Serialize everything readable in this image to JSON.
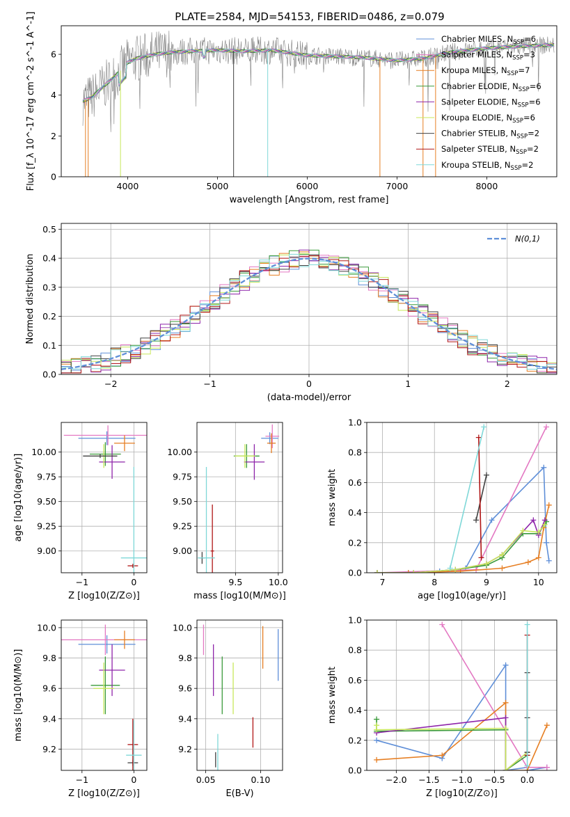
{
  "figure_title": "PLATE=2584, MJD=54153, FIBERID=0486, z=0.079",
  "models": [
    {
      "name": "Chabrier MILES, N",
      "sub": "SSP",
      "tail": "=6",
      "color": "#5f8fd8"
    },
    {
      "name": "Salpeter MILES, N",
      "sub": "SSP",
      "tail": "=3",
      "color": "#e377c2"
    },
    {
      "name": "Kroupa MILES, N",
      "sub": "SSP",
      "tail": "=7",
      "color": "#e67e22"
    },
    {
      "name": "Chabrier ELODIE, N",
      "sub": "SSP",
      "tail": "=6",
      "color": "#3a9a3a"
    },
    {
      "name": "Salpeter ELODIE, N",
      "sub": "SSP",
      "tail": "=6",
      "color": "#8e24aa"
    },
    {
      "name": "Kroupa ELODIE, N",
      "sub": "SSP",
      "tail": "=6",
      "color": "#c8e85a"
    },
    {
      "name": "Chabrier STELIB, N",
      "sub": "SSP",
      "tail": "=2",
      "color": "#404040"
    },
    {
      "name": "Salpeter STELIB, N",
      "sub": "SSP",
      "tail": "=2",
      "color": "#b01515"
    },
    {
      "name": "Kroupa STELIB, N",
      "sub": "SSP",
      "tail": "=2",
      "color": "#7fd8d8"
    }
  ],
  "chart_data": [
    {
      "id": "spectrum",
      "type": "line",
      "xlabel": "wavelength [Angstrom, rest frame]",
      "ylabel": "Flux [f_λ 10^-17 erg cm^-2 s^-1 A^-1]",
      "xlim": [
        3260,
        8780
      ],
      "ylim": [
        0,
        7.4
      ],
      "xticks": [
        4000,
        5000,
        6000,
        7000,
        8000
      ],
      "yticks": [
        0,
        2,
        4,
        6
      ],
      "grid": false,
      "legend": "top-right",
      "data_continuum": {
        "x": [
          3500,
          3600,
          3700,
          3800,
          3900,
          4000,
          4100,
          4200,
          4300,
          4500,
          4700,
          5000,
          5300,
          5600,
          6000,
          6300,
          6600,
          7000,
          7300,
          7600,
          8000,
          8400,
          8700
        ],
        "y": [
          3.7,
          3.9,
          4.3,
          4.7,
          5.1,
          5.6,
          5.8,
          5.9,
          6.0,
          6.1,
          6.15,
          6.2,
          6.15,
          6.2,
          5.95,
          5.9,
          5.85,
          5.7,
          5.8,
          6.1,
          6.3,
          6.4,
          6.45
        ]
      }
    },
    {
      "id": "residuals",
      "type": "histogram",
      "xlabel": "(data-model)/error",
      "ylabel": "Normed distribution",
      "xlim": [
        -2.5,
        2.5
      ],
      "ylim": [
        0,
        0.52
      ],
      "xticks": [
        -2,
        -1,
        0,
        1,
        2
      ],
      "yticks": [
        0.0,
        0.1,
        0.2,
        0.3,
        0.4,
        0.5
      ],
      "grid": true,
      "legend": "top-right",
      "normal_label": "N(0,1)",
      "normal_color": "#5f8fd8",
      "bin_width": 0.1
    },
    {
      "id": "age_vs_Z",
      "type": "errorbar",
      "xlabel": "Z [log10(Z/Z⊙)]",
      "ylabel": "age [log10(age/yr)]",
      "xlim": [
        -1.4,
        0.25
      ],
      "ylim": [
        8.78,
        10.3
      ],
      "xticks": [
        -1,
        0
      ],
      "yticks": [
        9.0,
        9.25,
        9.5,
        9.75,
        10.0
      ],
      "grid": true,
      "points": [
        {
          "model": 0,
          "x": -0.52,
          "xe": 0.55,
          "y": 10.14,
          "ye": 0.07
        },
        {
          "model": 1,
          "x": -0.5,
          "xe": 0.85,
          "y": 10.17,
          "ye": 0.1
        },
        {
          "model": 2,
          "x": -0.18,
          "xe": 0.2,
          "y": 10.09,
          "ye": 0.08
        },
        {
          "model": 3,
          "x": -0.55,
          "xe": 0.3,
          "y": 9.98,
          "ye": 0.12
        },
        {
          "model": 4,
          "x": -0.42,
          "xe": 0.25,
          "y": 9.9,
          "ye": 0.17
        },
        {
          "model": 5,
          "x": -0.58,
          "xe": 0.2,
          "y": 9.96,
          "ye": 0.12
        },
        {
          "model": 6,
          "x": -0.65,
          "xe": 0.33,
          "y": 9.96,
          "ye": 0.02
        },
        {
          "model": 7,
          "x": -0.02,
          "xe": 0.1,
          "y": 8.85,
          "ye": 0.02
        },
        {
          "model": 8,
          "x": 0.0,
          "xe": 0.25,
          "y": 8.93,
          "ye": 0.92
        }
      ]
    },
    {
      "id": "age_vs_mass",
      "type": "errorbar",
      "xlabel": "mass [log10(M/M⊙)]",
      "ylabel": "",
      "xlim": [
        9.05,
        10.05
      ],
      "ylim": [
        8.78,
        10.3
      ],
      "xticks": [
        9.5,
        10.0
      ],
      "yticks": [
        9.0,
        9.25,
        9.5,
        9.75,
        10.0
      ],
      "grid": true,
      "points": [
        {
          "model": 0,
          "x": 9.9,
          "xe": 0.1,
          "y": 10.14,
          "ye": 0.06
        },
        {
          "model": 1,
          "x": 9.93,
          "xe": 0.08,
          "y": 10.16,
          "ye": 0.12
        },
        {
          "model": 2,
          "x": 9.92,
          "xe": 0.05,
          "y": 10.09,
          "ye": 0.1
        },
        {
          "model": 3,
          "x": 9.63,
          "xe": 0.15,
          "y": 9.96,
          "ye": 0.12
        },
        {
          "model": 4,
          "x": 9.72,
          "xe": 0.12,
          "y": 9.9,
          "ye": 0.18
        },
        {
          "model": 5,
          "x": 9.61,
          "xe": 0.12,
          "y": 9.96,
          "ye": 0.12
        },
        {
          "model": 6,
          "x": 9.11,
          "xe": 0.03,
          "y": 8.93,
          "ye": 0.06
        },
        {
          "model": 7,
          "x": 9.23,
          "xe": 0.02,
          "y": 9.0,
          "ye": 0.47
        },
        {
          "model": 8,
          "x": 9.16,
          "xe": 0.1,
          "y": 8.93,
          "ye": 0.92
        }
      ]
    },
    {
      "id": "weight_vs_age",
      "type": "line",
      "xlabel": "age [log10(age/yr)]",
      "ylabel": "mass weight",
      "xlim": [
        6.7,
        10.35
      ],
      "ylim": [
        0,
        1.0
      ],
      "xticks": [
        7,
        8,
        9,
        10
      ],
      "yticks": [
        0.0,
        0.2,
        0.4,
        0.6,
        0.8,
        1.0
      ],
      "grid": true,
      "series": [
        {
          "model": 0,
          "x": [
            6.9,
            7.5,
            8.1,
            8.6,
            9.1,
            10.1,
            10.15,
            10.2
          ],
          "y": [
            0.0,
            0.0,
            0.01,
            0.03,
            0.35,
            0.7,
            0.2,
            0.08
          ]
        },
        {
          "model": 1,
          "x": [
            6.9,
            8.8,
            10.15
          ],
          "y": [
            0.0,
            0.02,
            0.97
          ]
        },
        {
          "model": 2,
          "x": [
            6.9,
            7.5,
            8.5,
            9.3,
            9.8,
            10.0,
            10.1,
            10.2
          ],
          "y": [
            0.0,
            0.0,
            0.01,
            0.03,
            0.07,
            0.1,
            0.3,
            0.45
          ]
        },
        {
          "model": 3,
          "x": [
            6.9,
            7.6,
            8.4,
            9.0,
            9.3,
            9.7,
            10.0,
            10.15
          ],
          "y": [
            0.0,
            0.0,
            0.02,
            0.05,
            0.1,
            0.26,
            0.26,
            0.34
          ]
        },
        {
          "model": 4,
          "x": [
            6.9,
            7.6,
            8.4,
            9.0,
            9.3,
            9.9,
            10.0,
            10.12
          ],
          "y": [
            0.0,
            0.0,
            0.02,
            0.06,
            0.12,
            0.35,
            0.25,
            0.35
          ]
        },
        {
          "model": 5,
          "x": [
            6.9,
            7.6,
            8.4,
            9.0,
            9.3,
            9.7,
            10.0,
            10.12
          ],
          "y": [
            0.0,
            0.0,
            0.02,
            0.06,
            0.12,
            0.28,
            0.27,
            0.32
          ]
        },
        {
          "model": 6,
          "x": [
            8.8,
            9.0
          ],
          "y": [
            0.35,
            0.65
          ]
        },
        {
          "model": 7,
          "x": [
            8.85,
            8.9
          ],
          "y": [
            0.9,
            0.1
          ]
        },
        {
          "model": 8,
          "x": [
            8.3,
            8.95
          ],
          "y": [
            0.03,
            0.97
          ]
        }
      ]
    },
    {
      "id": "mass_vs_Z",
      "type": "errorbar",
      "xlabel": "Z [log10(Z/Z⊙)]",
      "ylabel": "mass [log10(M/M⊙)]",
      "xlim": [
        -1.4,
        0.25
      ],
      "ylim": [
        9.06,
        10.05
      ],
      "xticks": [
        -1,
        0
      ],
      "yticks": [
        9.2,
        9.4,
        9.6,
        9.8,
        10.0
      ],
      "grid": true,
      "points": [
        {
          "model": 0,
          "x": -0.52,
          "xe": 0.55,
          "y": 9.89,
          "ye": 0.06
        },
        {
          "model": 1,
          "x": -0.55,
          "xe": 0.85,
          "y": 9.92,
          "ye": 0.1
        },
        {
          "model": 2,
          "x": -0.18,
          "xe": 0.2,
          "y": 9.92,
          "ye": 0.06
        },
        {
          "model": 3,
          "x": -0.55,
          "xe": 0.28,
          "y": 9.62,
          "ye": 0.19
        },
        {
          "model": 4,
          "x": -0.42,
          "xe": 0.25,
          "y": 9.72,
          "ye": 0.17
        },
        {
          "model": 5,
          "x": -0.58,
          "xe": 0.2,
          "y": 9.6,
          "ye": 0.17
        },
        {
          "model": 6,
          "x": -0.02,
          "xe": 0.1,
          "y": 9.11,
          "ye": 0.02
        },
        {
          "model": 7,
          "x": -0.02,
          "xe": 0.1,
          "y": 9.23,
          "ye": 0.17
        },
        {
          "model": 8,
          "x": 0.0,
          "xe": 0.15,
          "y": 9.16,
          "ye": 0.23
        }
      ]
    },
    {
      "id": "mass_vs_ebv",
      "type": "errorbar",
      "xlabel": "E(B-V)",
      "ylabel": "",
      "xlim": [
        0.042,
        0.12
      ],
      "ylim": [
        9.06,
        10.05
      ],
      "xticks": [
        0.05,
        0.1
      ],
      "yticks": [
        9.2,
        9.4,
        9.6,
        9.8,
        10.0
      ],
      "grid": true,
      "points": [
        {
          "model": 0,
          "x": 0.116,
          "xe": 0.0,
          "y": 9.82,
          "ye": 0.17
        },
        {
          "model": 1,
          "x": 0.048,
          "xe": 0.0,
          "y": 9.92,
          "ye": 0.1
        },
        {
          "model": 2,
          "x": 0.102,
          "xe": 0.0,
          "y": 9.87,
          "ye": 0.14
        },
        {
          "model": 3,
          "x": 0.065,
          "xe": 0.0,
          "y": 9.62,
          "ye": 0.19
        },
        {
          "model": 4,
          "x": 0.057,
          "xe": 0.0,
          "y": 9.72,
          "ye": 0.17
        },
        {
          "model": 5,
          "x": 0.075,
          "xe": 0.0,
          "y": 9.6,
          "ye": 0.17
        },
        {
          "model": 6,
          "x": 0.059,
          "xe": 0.0,
          "y": 9.13,
          "ye": 0.05
        },
        {
          "model": 7,
          "x": 0.093,
          "xe": 0.0,
          "y": 9.31,
          "ye": 0.1
        },
        {
          "model": 8,
          "x": 0.061,
          "xe": 0.0,
          "y": 9.17,
          "ye": 0.13
        }
      ]
    },
    {
      "id": "weight_vs_Z",
      "type": "line",
      "xlabel": "Z [log10(Z/Z⊙)]",
      "ylabel": "mass weight",
      "xlim": [
        -2.45,
        0.45
      ],
      "ylim": [
        0,
        1.0
      ],
      "xticks": [
        -2.0,
        -1.5,
        -1.0,
        -0.5,
        0.0
      ],
      "yticks": [
        0.0,
        0.2,
        0.4,
        0.6,
        0.8,
        1.0
      ],
      "grid": true,
      "series": [
        {
          "model": 0,
          "x": [
            -2.3,
            -1.3,
            -0.33,
            -0.33,
            0.0,
            0.0,
            0.3
          ],
          "y": [
            0.2,
            0.08,
            0.7,
            0.0,
            0.02,
            0.0,
            0.02
          ]
        },
        {
          "model": 1,
          "x": [
            -1.3,
            0.0,
            0.3
          ],
          "y": [
            0.97,
            0.02,
            0.02
          ]
        },
        {
          "model": 2,
          "x": [
            -2.3,
            -1.3,
            -0.33,
            -0.33,
            0.0,
            0.0,
            0.3
          ],
          "y": [
            0.07,
            0.1,
            0.45,
            0.0,
            0.0,
            0.0,
            0.3
          ]
        },
        {
          "model": 3,
          "x": [
            -2.3,
            -2.3,
            -0.33,
            -0.33,
            0.0
          ],
          "y": [
            0.34,
            0.26,
            0.27,
            0.0,
            0.1
          ]
        },
        {
          "model": 4,
          "x": [
            -2.3,
            -0.33,
            -0.33,
            0.0
          ],
          "y": [
            0.25,
            0.35,
            0.0,
            0.12
          ]
        },
        {
          "model": 5,
          "x": [
            -2.3,
            -2.3,
            -0.33,
            -0.33,
            0.0
          ],
          "y": [
            0.3,
            0.27,
            0.28,
            0.0,
            0.12
          ]
        },
        {
          "model": 6,
          "x": [
            0.0,
            0.0,
            0.0
          ],
          "y": [
            0.35,
            0.65,
            0.12
          ]
        },
        {
          "model": 7,
          "x": [
            0.0,
            0.0
          ],
          "y": [
            0.9,
            0.1
          ]
        },
        {
          "model": 8,
          "x": [
            0.0,
            0.0
          ],
          "y": [
            0.97,
            0.03
          ]
        }
      ]
    }
  ]
}
